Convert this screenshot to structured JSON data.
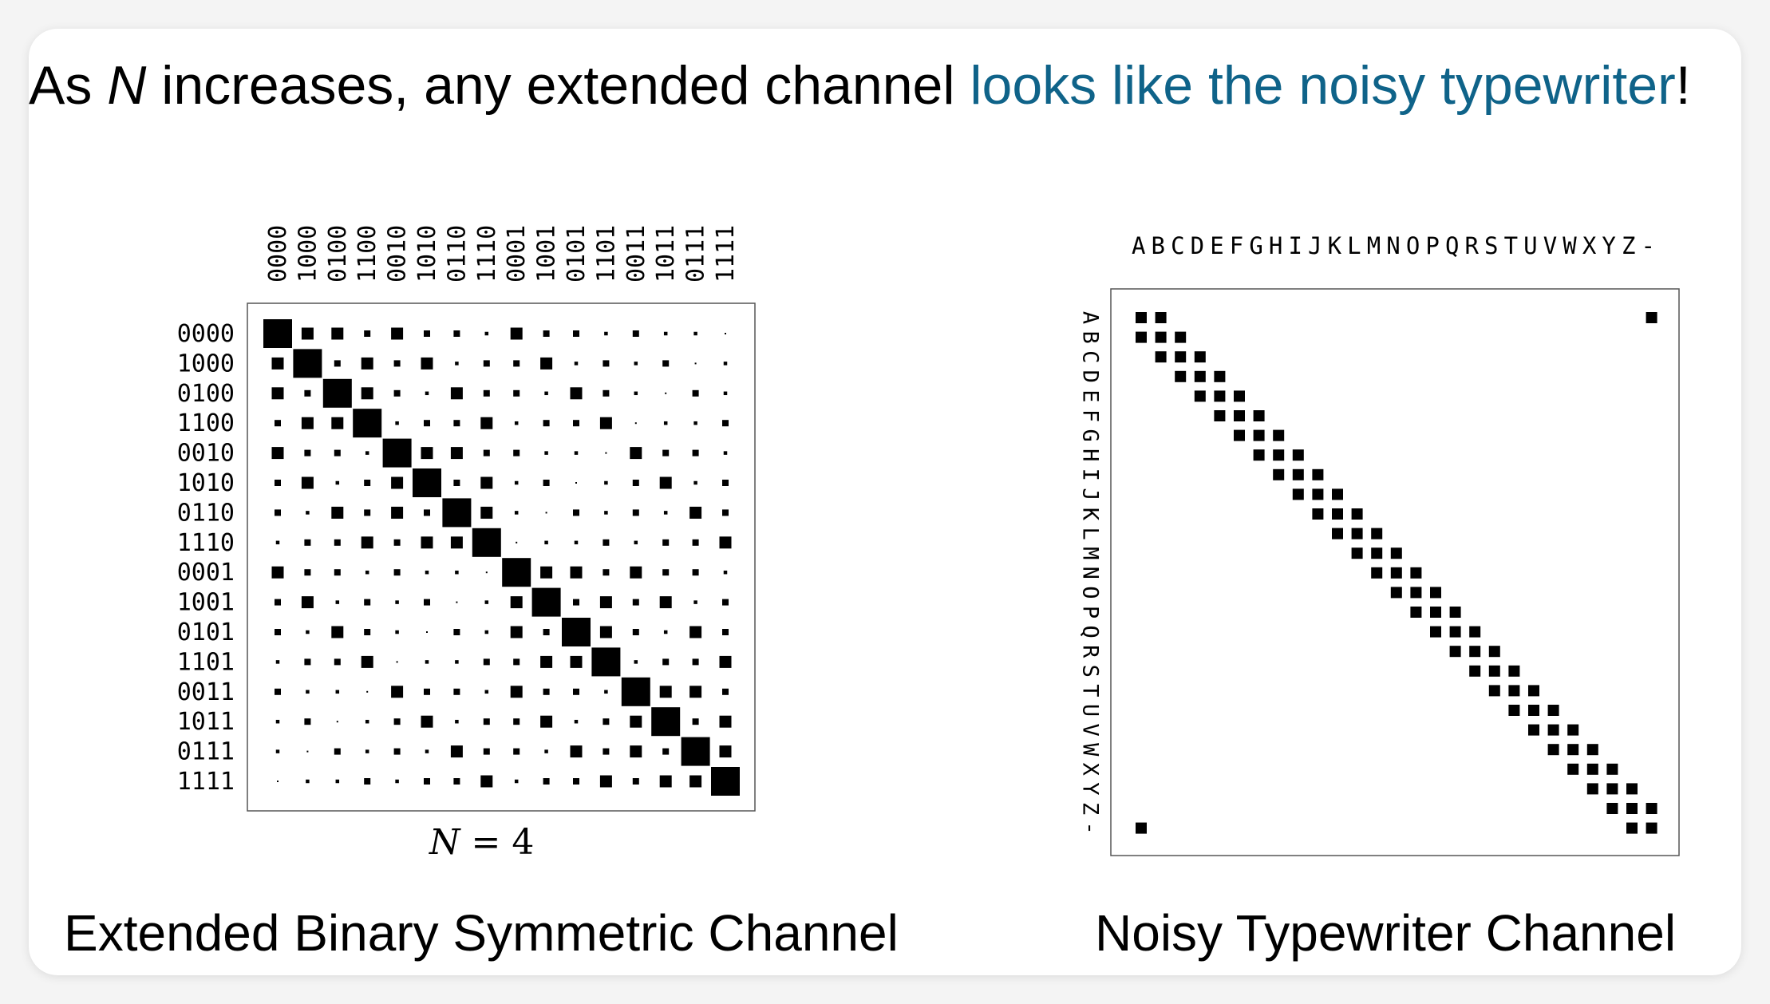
{
  "slide": {
    "headline_parts": {
      "lead": "As ",
      "var": "N",
      "middle": " increases, any extended channel ",
      "highlight": "looks like the noisy typewriter",
      "end": "!"
    },
    "highlight_color": "#0f6389",
    "left_caption": "Extended Binary Symmetric Channel",
    "right_caption": "Noisy Typewriter Channel",
    "n_label": {
      "var": "N",
      "rest": " = 4"
    }
  },
  "left_matrix": {
    "row_labels": [
      "0000",
      "1000",
      "0100",
      "1100",
      "0010",
      "1010",
      "0110",
      "1110",
      "0001",
      "1001",
      "0101",
      "1101",
      "0011",
      "1011",
      "0111",
      "1111"
    ],
    "col_labels": [
      "0000",
      "1000",
      "0100",
      "1100",
      "0010",
      "1010",
      "0110",
      "1110",
      "0001",
      "1001",
      "0101",
      "1101",
      "0011",
      "1011",
      "0111",
      "1111"
    ],
    "weight_legend": "Cell size reflects transition probability; decreasing with Hamming distance between row and column codewords (0 = largest on diagonal, 4 = smallest)."
  },
  "right_matrix": {
    "symbols": [
      "A",
      "B",
      "C",
      "D",
      "E",
      "F",
      "G",
      "H",
      "I",
      "J",
      "K",
      "L",
      "M",
      "N",
      "O",
      "P",
      "Q",
      "R",
      "S",
      "T",
      "U",
      "V",
      "W",
      "X",
      "Y",
      "Z",
      "-"
    ],
    "header_text": "ABCDEFGHIJKLMNOPQRSTUVWXYZ-"
  }
}
